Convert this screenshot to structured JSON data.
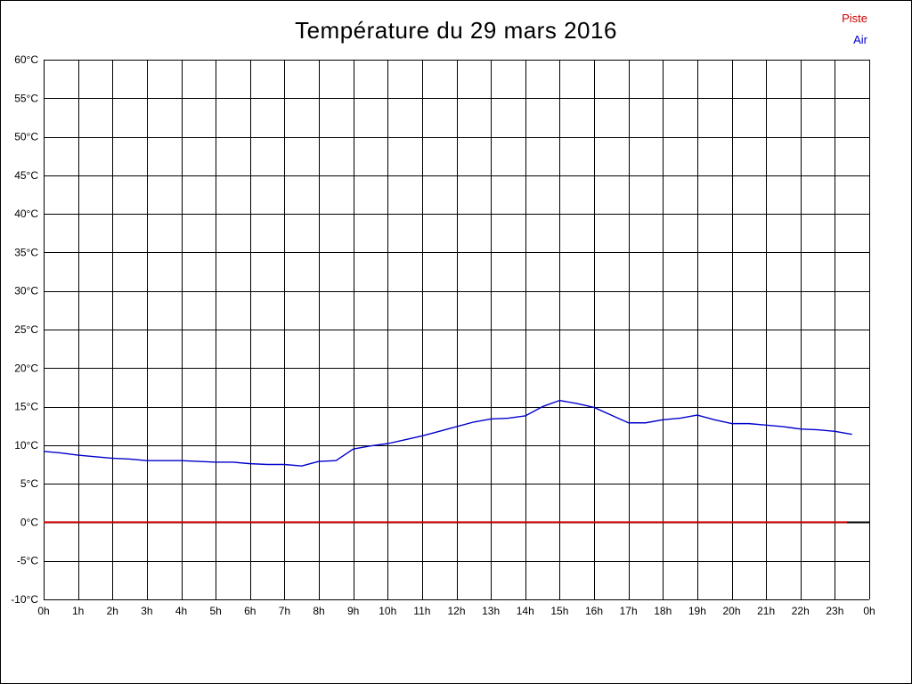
{
  "page": {
    "background": "#ffffff"
  },
  "chart_data": {
    "type": "line",
    "title": "Température du 29 mars 2016",
    "xlabel": "",
    "ylabel": "",
    "xlim": [
      0,
      24
    ],
    "ylim": [
      -10,
      60
    ],
    "x_tick_step": 1,
    "y_tick_step": 5,
    "grid": true,
    "legend_position": "top-right",
    "x_tick_labels": [
      "0h",
      "1h",
      "2h",
      "3h",
      "4h",
      "5h",
      "6h",
      "7h",
      "8h",
      "9h",
      "10h",
      "11h",
      "12h",
      "13h",
      "14h",
      "15h",
      "16h",
      "17h",
      "18h",
      "19h",
      "20h",
      "21h",
      "22h",
      "23h",
      "0h"
    ],
    "y_tick_labels": [
      "-10°C",
      "-5°C",
      "0°C",
      "5°C",
      "10°C",
      "15°C",
      "20°C",
      "25°C",
      "30°C",
      "35°C",
      "40°C",
      "45°C",
      "50°C",
      "55°C",
      "60°C"
    ],
    "zero_baseline": {
      "value": 0,
      "color": "#000000",
      "width": 2
    },
    "series": [
      {
        "name": "Piste",
        "color": "#cc0000",
        "width": 2,
        "x": [
          0,
          23.35
        ],
        "values": [
          0,
          0
        ]
      },
      {
        "name": "Air",
        "color": "#0000cc",
        "width": 1.4,
        "x_start": 0,
        "x_step": 0.5,
        "values": [
          9.2,
          9.0,
          8.7,
          8.5,
          8.3,
          8.2,
          8.0,
          8.0,
          8.0,
          7.9,
          7.8,
          7.8,
          7.6,
          7.5,
          7.5,
          7.3,
          7.9,
          8.0,
          9.5,
          9.9,
          10.2,
          10.7,
          11.2,
          11.8,
          12.4,
          13.0,
          13.4,
          13.5,
          13.8,
          15.0,
          15.8,
          15.4,
          14.9,
          13.9,
          12.9,
          12.9,
          13.3,
          13.5,
          13.9,
          13.3,
          12.8,
          12.8,
          12.6,
          12.4,
          12.1,
          12.0,
          11.8,
          11.4
        ]
      }
    ]
  }
}
